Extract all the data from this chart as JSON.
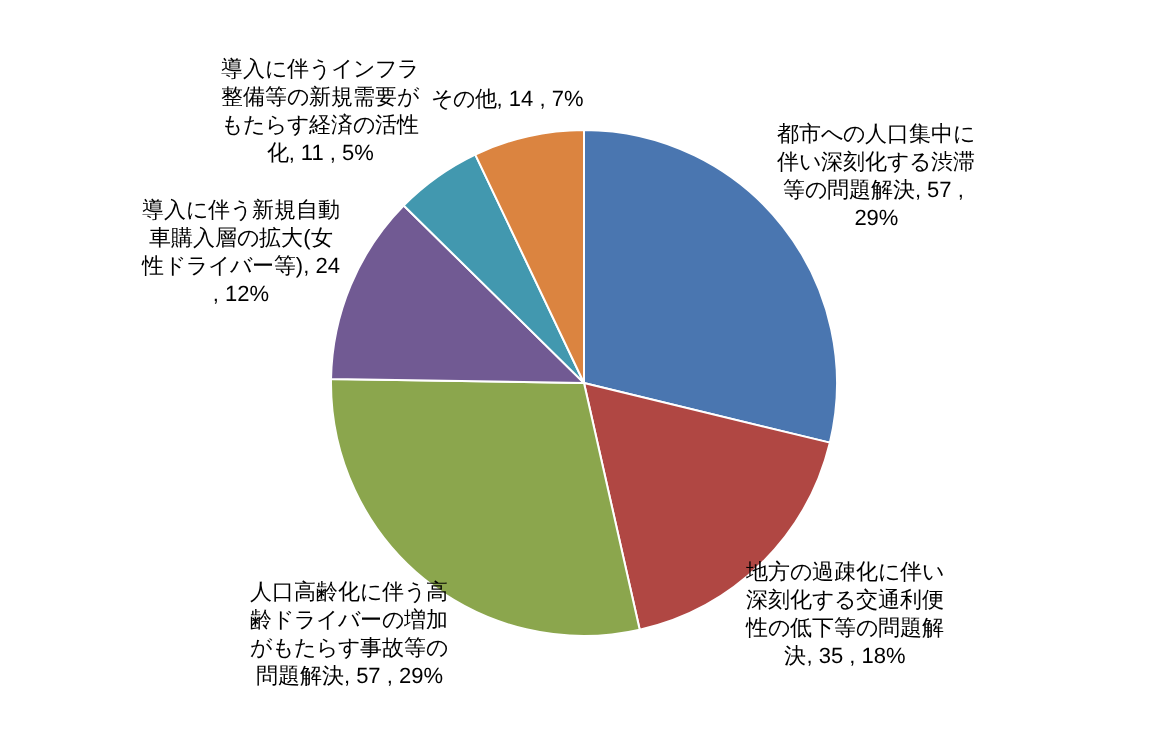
{
  "chart_data": {
    "type": "pie",
    "categories": [
      "都市への人口集中に伴い深刻化する渋滞等の問題解決",
      "地方の過疎化に伴い深刻化する交通利便性の低下等の問題解決",
      "人口高齢化に伴う高齢ドライバーの増加がもたらす事故等の問題解決",
      "導入に伴う新規自動車購入層の拡大(女性ドライバー等)",
      "導入に伴うインフラ整備等の新規需要がもたらす経済の活性化",
      "その他"
    ],
    "values": [
      57,
      35,
      57,
      24,
      11,
      14
    ],
    "value_labels": [
      "57 , 29%",
      "35 , 18%",
      "57 , 29%",
      "24 , 12%",
      "11 , 5%",
      "14 , 7%"
    ],
    "colors": [
      "#4a76b0",
      "#b04743",
      "#8ba64d",
      "#715a93",
      "#4298af",
      "#db8440"
    ],
    "legend": false
  }
}
